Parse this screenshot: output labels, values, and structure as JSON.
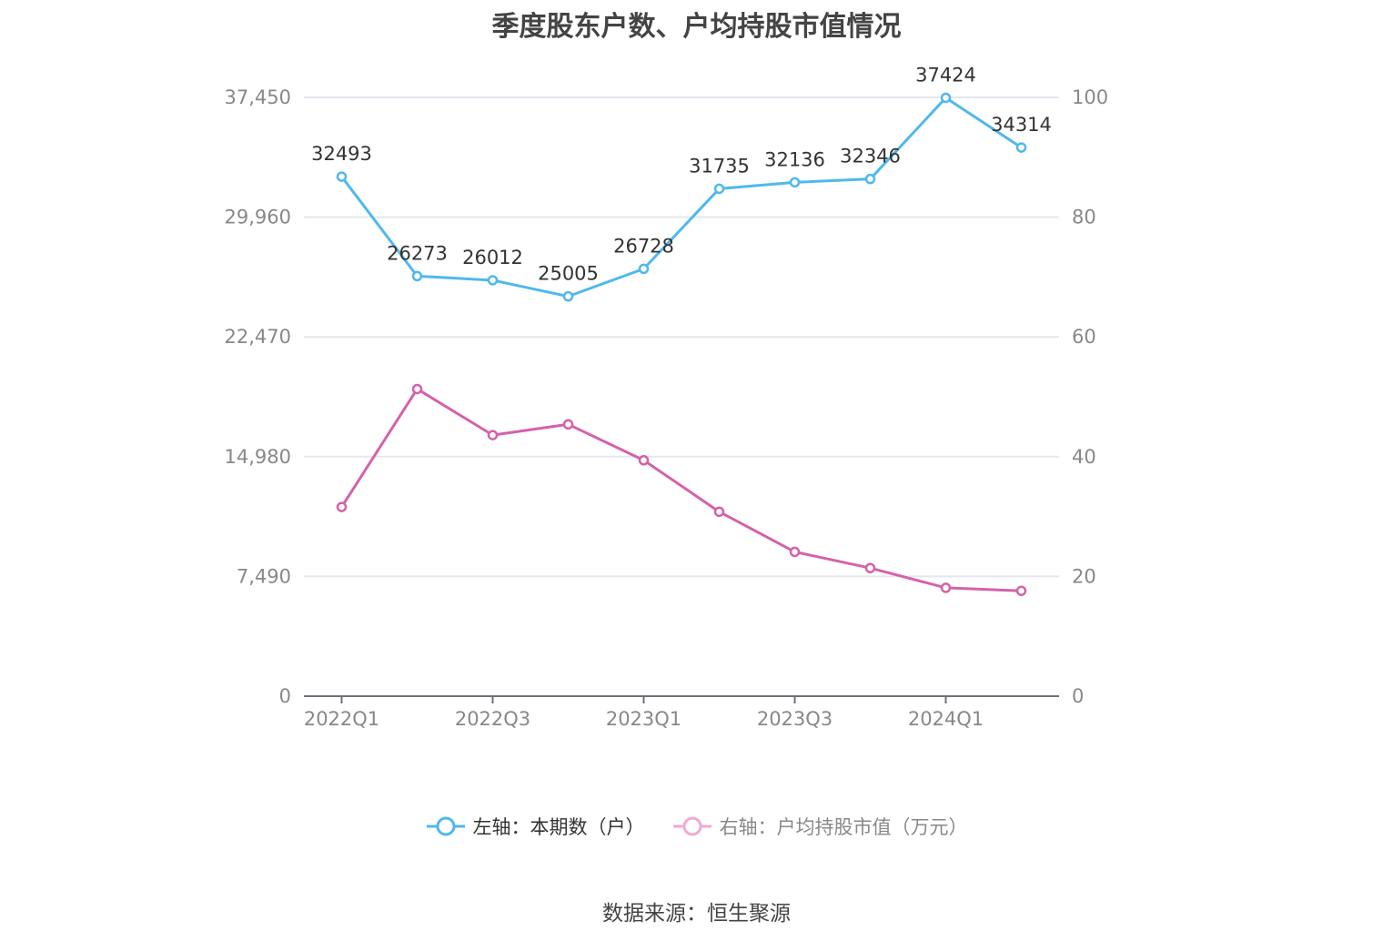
{
  "chart_data": {
    "type": "line",
    "title": "季度股东户数、户均持股市值情况",
    "categories": [
      "2022Q1",
      "2022Q2",
      "2022Q3",
      "2022Q4",
      "2023Q1",
      "2023Q2",
      "2023Q3",
      "2023Q4",
      "2024Q1",
      "2024Q2"
    ],
    "x_tick_labels": [
      "2022Q1",
      "2022Q3",
      "2023Q1",
      "2023Q3",
      "2024Q1"
    ],
    "left_axis": {
      "ticks": [
        "0",
        "7,490",
        "14,980",
        "22,470",
        "29,960",
        "37,450"
      ],
      "range": [
        0,
        37450
      ]
    },
    "right_axis": {
      "ticks": [
        "0",
        "20",
        "40",
        "60",
        "80",
        "100"
      ],
      "range": [
        0,
        100
      ]
    },
    "grid": true,
    "legend_position": "bottom",
    "series": [
      {
        "name": "左轴：本期数（户）",
        "axis": "left",
        "color": "#4fb8ee",
        "values": [
          32493,
          26273,
          26012,
          25005,
          26728,
          31735,
          32136,
          32346,
          37424,
          34314
        ],
        "labels": [
          "32493",
          "26273",
          "26012",
          "25005",
          "26728",
          "31735",
          "32136",
          "32346",
          "37424",
          "34314"
        ]
      },
      {
        "name": "右轴：户均持股市值（万元）",
        "axis": "right",
        "color": "#d462aa",
        "legend_color": "#f2a9d2",
        "values": [
          31.6,
          51.3,
          43.6,
          45.4,
          39.4,
          30.8,
          24.1,
          21.4,
          18.1,
          17.6
        ]
      }
    ]
  },
  "source": "数据来源：恒生聚源"
}
